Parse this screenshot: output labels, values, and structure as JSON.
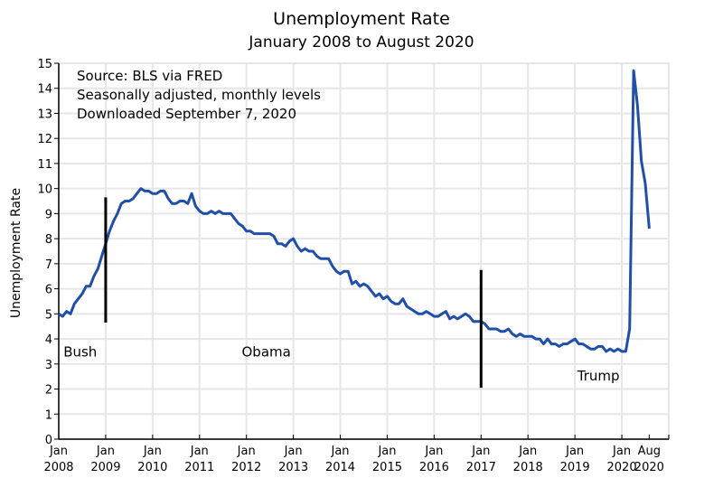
{
  "chart_data": {
    "type": "line",
    "title": "Unemployment Rate",
    "subtitle": "January 2008 to August 2020",
    "ylabel": "Unemployment Rate",
    "xlabel": "",
    "ylim": [
      0,
      15
    ],
    "yticks": [
      0,
      1,
      2,
      3,
      4,
      5,
      6,
      7,
      8,
      9,
      10,
      11,
      12,
      13,
      14,
      15
    ],
    "xlim_years": [
      2008.0,
      2021.0
    ],
    "xticks": [
      {
        "t": 2008.0,
        "line1": "Jan",
        "line2": "2008"
      },
      {
        "t": 2009.0,
        "line1": "Jan",
        "line2": "2009"
      },
      {
        "t": 2010.0,
        "line1": "Jan",
        "line2": "2010"
      },
      {
        "t": 2011.0,
        "line1": "Jan",
        "line2": "2011"
      },
      {
        "t": 2012.0,
        "line1": "Jan",
        "line2": "2012"
      },
      {
        "t": 2013.0,
        "line1": "Jan",
        "line2": "2013"
      },
      {
        "t": 2014.0,
        "line1": "Jan",
        "line2": "2014"
      },
      {
        "t": 2015.0,
        "line1": "Jan",
        "line2": "2015"
      },
      {
        "t": 2016.0,
        "line1": "Jan",
        "line2": "2016"
      },
      {
        "t": 2017.0,
        "line1": "Jan",
        "line2": "2017"
      },
      {
        "t": 2018.0,
        "line1": "Jan",
        "line2": "2018"
      },
      {
        "t": 2019.0,
        "line1": "Jan",
        "line2": "2019"
      },
      {
        "t": 2020.0,
        "line1": "Jan",
        "line2": "2020"
      },
      {
        "t": 2020.583,
        "line1": "Aug",
        "line2": "2020"
      }
    ],
    "grid": true,
    "start": "2008-01",
    "series": [
      {
        "name": "Unemployment Rate",
        "color": "#1f4fa8",
        "values": [
          5.0,
          4.9,
          5.1,
          5.0,
          5.4,
          5.6,
          5.8,
          6.1,
          6.1,
          6.5,
          6.8,
          7.3,
          7.8,
          8.3,
          8.7,
          9.0,
          9.4,
          9.5,
          9.5,
          9.6,
          9.8,
          10.0,
          9.9,
          9.9,
          9.8,
          9.8,
          9.9,
          9.9,
          9.6,
          9.4,
          9.4,
          9.5,
          9.5,
          9.4,
          9.8,
          9.3,
          9.1,
          9.0,
          9.0,
          9.1,
          9.0,
          9.1,
          9.0,
          9.0,
          9.0,
          8.8,
          8.6,
          8.5,
          8.3,
          8.3,
          8.2,
          8.2,
          8.2,
          8.2,
          8.2,
          8.1,
          7.8,
          7.8,
          7.7,
          7.9,
          8.0,
          7.7,
          7.5,
          7.6,
          7.5,
          7.5,
          7.3,
          7.2,
          7.2,
          7.2,
          6.9,
          6.7,
          6.6,
          6.7,
          6.7,
          6.2,
          6.3,
          6.1,
          6.2,
          6.1,
          5.9,
          5.7,
          5.8,
          5.6,
          5.7,
          5.5,
          5.4,
          5.4,
          5.6,
          5.3,
          5.2,
          5.1,
          5.0,
          5.0,
          5.1,
          5.0,
          4.9,
          4.9,
          5.0,
          5.1,
          4.8,
          4.9,
          4.8,
          4.9,
          5.0,
          4.9,
          4.7,
          4.7,
          4.7,
          4.6,
          4.4,
          4.4,
          4.4,
          4.3,
          4.3,
          4.4,
          4.2,
          4.1,
          4.2,
          4.1,
          4.1,
          4.1,
          4.0,
          4.0,
          3.8,
          4.0,
          3.8,
          3.8,
          3.7,
          3.8,
          3.8,
          3.9,
          4.0,
          3.8,
          3.8,
          3.7,
          3.6,
          3.6,
          3.7,
          3.7,
          3.5,
          3.6,
          3.5,
          3.6,
          3.5,
          3.5,
          4.4,
          14.7,
          13.3,
          11.1,
          10.2,
          8.4
        ]
      }
    ],
    "markers": [
      {
        "t": 2009.0,
        "y": [
          4.65,
          9.65
        ]
      },
      {
        "t": 2017.0,
        "y": [
          2.05,
          6.75
        ]
      }
    ],
    "annotations": {
      "source": [
        "Source:  BLS via FRED",
        "Seasonally adjusted, monthly levels",
        "Downloaded September 7, 2020"
      ],
      "presidents": [
        {
          "label": "Bush",
          "t": 2008.1,
          "y": 3.3
        },
        {
          "label": "Obama",
          "t": 2011.9,
          "y": 3.3
        },
        {
          "label": "Trump",
          "t": 2019.05,
          "y": 2.35
        }
      ]
    }
  }
}
